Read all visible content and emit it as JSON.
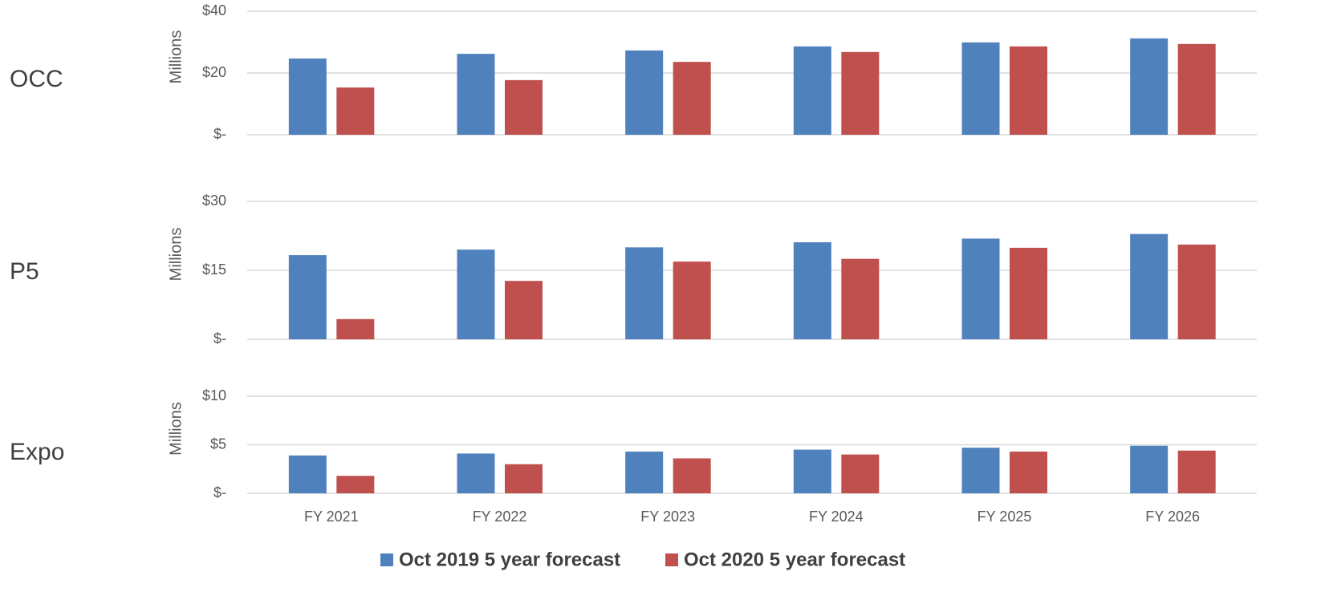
{
  "chart_data": [
    {
      "type": "bar",
      "title": "OCC",
      "ylabel": "Millions",
      "ylim": [
        0,
        40
      ],
      "yticks": [
        {
          "value": 0,
          "label": "$-"
        },
        {
          "value": 20,
          "label": "$20"
        },
        {
          "value": 40,
          "label": "$40"
        }
      ],
      "grid": true,
      "series": [
        {
          "color": "#4f81bd",
          "values": [
            24.7,
            26.2,
            27.3,
            28.6,
            29.9,
            31.2
          ]
        },
        {
          "color": "#c0504d",
          "values": [
            15.3,
            17.7,
            23.6,
            26.8,
            28.6,
            29.4
          ]
        }
      ]
    },
    {
      "type": "bar",
      "title": "P5",
      "ylabel": "Millions",
      "ylim": [
        0,
        30
      ],
      "yticks": [
        {
          "value": 0,
          "label": "$-"
        },
        {
          "value": 15,
          "label": "$15"
        },
        {
          "value": 30,
          "label": "$30"
        }
      ],
      "grid": true,
      "series": [
        {
          "color": "#4f81bd",
          "values": [
            18.3,
            19.5,
            20.0,
            21.1,
            21.9,
            22.9
          ]
        },
        {
          "color": "#c0504d",
          "values": [
            4.4,
            12.7,
            16.9,
            17.5,
            19.9,
            20.6
          ]
        }
      ]
    },
    {
      "type": "bar",
      "title": "Expo",
      "ylabel": "Millions",
      "categories": [
        "FY 2021",
        "FY 2022",
        "FY 2023",
        "FY 2024",
        "FY 2025",
        "FY 2026"
      ],
      "ylim": [
        0,
        10
      ],
      "yticks": [
        {
          "value": 0,
          "label": "$-"
        },
        {
          "value": 5,
          "label": "$5"
        },
        {
          "value": 10,
          "label": "$10"
        }
      ],
      "grid": true,
      "series": [
        {
          "name": "Oct 2019 5 year forecast",
          "color": "#4f81bd",
          "values": [
            3.9,
            4.1,
            4.3,
            4.5,
            4.7,
            4.9
          ]
        },
        {
          "name": "Oct 2020 5 year forecast",
          "color": "#c0504d",
          "values": [
            1.8,
            3.0,
            3.6,
            4.0,
            4.3,
            4.4
          ]
        }
      ]
    }
  ]
}
